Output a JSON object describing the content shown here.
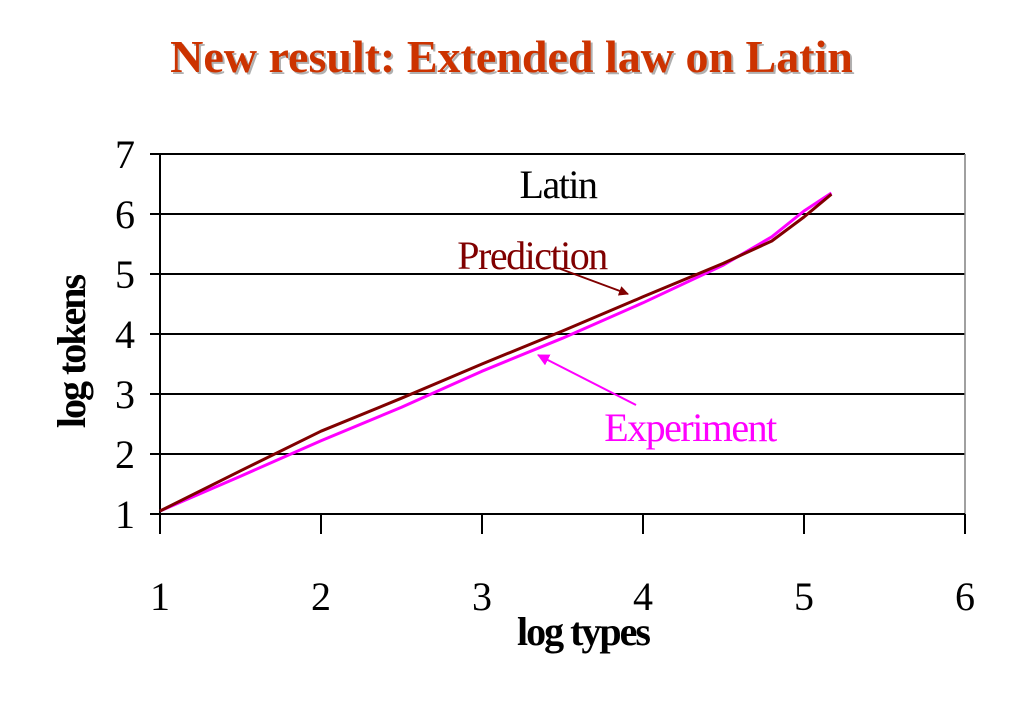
{
  "slide": {
    "title": "New result: Extended law on Latin"
  },
  "chart_data": {
    "type": "line",
    "title": "",
    "xlabel": "log types",
    "ylabel": "log tokens",
    "xlim": [
      1,
      6
    ],
    "ylim": [
      1,
      7
    ],
    "x_ticks": [
      "1",
      "2",
      "3",
      "4",
      "5",
      "6"
    ],
    "y_ticks": [
      "1",
      "2",
      "3",
      "4",
      "5",
      "6",
      "7"
    ],
    "grid": "horizontal",
    "legend": "none",
    "annotations": [
      {
        "text": "Latin",
        "color": "#000000"
      },
      {
        "text": "Prediction",
        "color": "#800000"
      },
      {
        "text": "Experiment",
        "color": "#ff00ff"
      }
    ],
    "series": [
      {
        "name": "Prediction",
        "color": "#800000",
        "x": [
          1.0,
          1.5,
          2.0,
          2.5,
          3.0,
          3.5,
          4.0,
          4.5,
          4.8,
          5.0,
          5.17
        ],
        "y": [
          1.05,
          1.72,
          2.38,
          2.93,
          3.5,
          4.05,
          4.62,
          5.18,
          5.55,
          5.95,
          6.33
        ]
      },
      {
        "name": "Experiment",
        "color": "#ff00ff",
        "x": [
          1.0,
          1.5,
          2.0,
          2.5,
          3.0,
          3.5,
          4.0,
          4.5,
          4.8,
          5.0,
          5.17
        ],
        "y": [
          1.05,
          1.63,
          2.22,
          2.78,
          3.38,
          3.93,
          4.52,
          5.15,
          5.62,
          6.05,
          6.35
        ]
      }
    ]
  }
}
